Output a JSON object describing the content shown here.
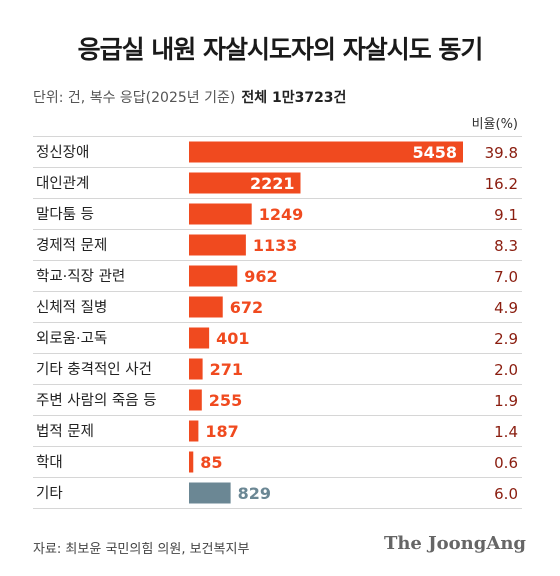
{
  "title": "응급실 내원 자살시도자의 자살시도 동기",
  "subtitle": {
    "unit_text": "단위: 건, 복수 응답(2025년 기준)",
    "total_text": "전체 1만3723건"
  },
  "source": "자료: 최보윤 국민의힘 의원, 보건복지부",
  "brand": "The JoongAng",
  "colors": {
    "accent": "#f04a1f",
    "other": "#6b8794",
    "percent_text": "#8a1d0f"
  },
  "chart_data": {
    "type": "bar",
    "orientation": "horizontal",
    "categories": [
      "정신장애",
      "대인관계",
      "말다툼 등",
      "경제적 문제",
      "학교·직장 관련",
      "신체적 질병",
      "외로움·고독",
      "기타 충격적인 사건",
      "주변 사람의 죽음 등",
      "법적 문제",
      "학대",
      "기타"
    ],
    "values": [
      5458,
      2221,
      1249,
      1133,
      962,
      672,
      401,
      271,
      255,
      187,
      85,
      829
    ],
    "percent_header": "비율(%)",
    "percents": [
      "39.8",
      "16.2",
      "9.1",
      "8.3",
      "7.0",
      "4.9",
      "2.9",
      "2.0",
      "1.9",
      "1.4",
      "0.6",
      "6.0"
    ],
    "bar_colors": [
      "#f04a1f",
      "#f04a1f",
      "#f04a1f",
      "#f04a1f",
      "#f04a1f",
      "#f04a1f",
      "#f04a1f",
      "#f04a1f",
      "#f04a1f",
      "#f04a1f",
      "#f04a1f",
      "#6b8794"
    ],
    "xlim": [
      0,
      5458
    ],
    "grid": false
  }
}
